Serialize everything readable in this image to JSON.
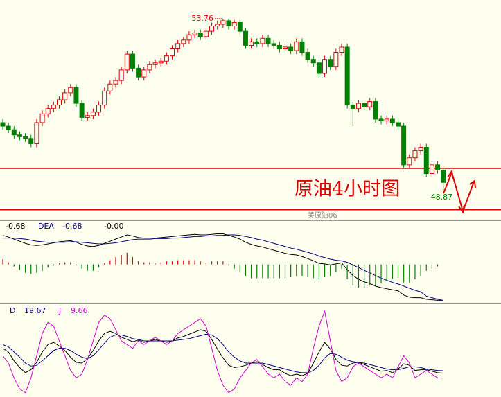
{
  "chart_data": [
    {
      "type": "candlestick",
      "up_color": "#dd0000",
      "down_color": "#008000",
      "ylim": [
        48.02,
        54.29
      ],
      "annotation": "原油4小时图",
      "symbol": "美原油06",
      "hlines": {
        "values": [
          49.5,
          48.32
        ],
        "color": "#e00000"
      },
      "open": [
        50.8,
        50.7,
        50.6,
        50.45,
        50.4,
        50.35,
        50.2,
        50.8,
        51.05,
        51.2,
        51.3,
        51.45,
        51.65,
        51.8,
        51.35,
        50.95,
        51.0,
        51.1,
        51.3,
        51.7,
        51.9,
        52.0,
        52.3,
        52.75,
        52.35,
        52.1,
        52.3,
        52.45,
        52.5,
        52.55,
        52.7,
        52.9,
        53.05,
        53.15,
        53.3,
        53.35,
        53.25,
        53.4,
        53.55,
        53.6,
        53.7,
        53.55,
        53.65,
        53.4,
        53.0,
        53.1,
        53.05,
        53.2,
        53.05,
        53.0,
        52.9,
        52.95,
        52.85,
        53.1,
        52.8,
        52.6,
        52.5,
        52.2,
        52.6,
        52.4,
        52.8,
        52.95,
        51.3,
        51.2,
        51.35,
        51.25,
        51.4,
        50.9,
        50.85,
        50.9,
        50.8,
        50.7,
        49.6,
        49.8,
        50.0,
        50.1,
        49.35,
        49.6,
        49.45
      ],
      "high": [
        50.9,
        50.8,
        50.7,
        50.55,
        50.5,
        50.45,
        50.9,
        51.15,
        51.3,
        51.4,
        51.55,
        51.75,
        51.9,
        51.9,
        51.45,
        51.1,
        51.2,
        51.4,
        51.8,
        52.0,
        52.1,
        52.4,
        52.85,
        52.85,
        52.45,
        52.4,
        52.55,
        52.6,
        52.65,
        52.8,
        53.0,
        53.15,
        53.25,
        53.4,
        53.45,
        53.45,
        53.5,
        53.65,
        53.7,
        53.76,
        53.75,
        53.72,
        53.72,
        53.5,
        53.2,
        53.2,
        53.3,
        53.3,
        53.15,
        53.1,
        53.05,
        53.05,
        53.2,
        53.2,
        52.9,
        52.7,
        52.6,
        52.7,
        52.7,
        52.9,
        53.05,
        53.05,
        51.4,
        51.45,
        51.45,
        51.5,
        51.5,
        51.0,
        51.0,
        51.0,
        50.9,
        50.8,
        49.9,
        50.1,
        50.2,
        50.2,
        49.7,
        49.7,
        49.55
      ],
      "low": [
        50.6,
        50.5,
        50.35,
        50.3,
        50.25,
        50.1,
        50.1,
        50.7,
        50.95,
        51.1,
        51.2,
        51.35,
        51.55,
        51.25,
        50.85,
        50.85,
        50.9,
        51.0,
        51.2,
        51.6,
        51.8,
        51.9,
        52.2,
        52.25,
        52.0,
        52.0,
        52.2,
        52.35,
        52.4,
        52.45,
        52.6,
        52.8,
        52.95,
        53.05,
        53.2,
        53.15,
        53.15,
        53.3,
        53.45,
        53.5,
        53.45,
        53.45,
        53.3,
        52.9,
        52.9,
        52.95,
        52.95,
        52.95,
        52.9,
        52.8,
        52.8,
        52.75,
        52.75,
        52.7,
        52.5,
        52.4,
        52.1,
        52.1,
        52.3,
        52.3,
        52.7,
        51.2,
        50.7,
        51.1,
        51.15,
        51.15,
        50.8,
        50.75,
        50.75,
        50.7,
        50.6,
        49.5,
        49.5,
        49.7,
        49.9,
        49.25,
        49.25,
        49.35,
        48.87
      ],
      "close": [
        50.7,
        50.6,
        50.45,
        50.4,
        50.35,
        50.2,
        50.8,
        51.05,
        51.2,
        51.3,
        51.45,
        51.65,
        51.8,
        51.35,
        50.95,
        51.0,
        51.1,
        51.3,
        51.7,
        51.9,
        52.0,
        52.3,
        52.75,
        52.35,
        52.1,
        52.3,
        52.45,
        52.5,
        52.55,
        52.7,
        52.9,
        53.05,
        53.15,
        53.3,
        53.35,
        53.25,
        53.4,
        53.55,
        53.6,
        53.7,
        53.55,
        53.65,
        53.4,
        53.0,
        53.1,
        53.05,
        53.2,
        53.05,
        53.0,
        52.9,
        52.95,
        52.85,
        53.1,
        52.8,
        52.6,
        52.5,
        52.2,
        52.6,
        52.4,
        52.8,
        52.95,
        51.3,
        51.2,
        51.35,
        51.25,
        51.4,
        50.9,
        50.85,
        50.9,
        50.8,
        50.7,
        49.6,
        49.8,
        50.0,
        50.1,
        49.35,
        49.6,
        49.45,
        49.1
      ]
    },
    {
      "type": "macd",
      "ylim": [
        -0.74,
        0.81
      ],
      "series": [
        {
          "color": "#000000",
          "values": [
            0.55,
            0.52,
            0.48,
            0.44,
            0.4,
            0.37,
            0.36,
            0.37,
            0.39,
            0.41,
            0.43,
            0.44,
            0.45,
            0.42,
            0.38,
            0.35,
            0.34,
            0.36,
            0.4,
            0.44,
            0.48,
            0.52,
            0.56,
            0.54,
            0.51,
            0.5,
            0.5,
            0.5,
            0.51,
            0.52,
            0.53,
            0.54,
            0.55,
            0.56,
            0.57,
            0.56,
            0.56,
            0.57,
            0.58,
            0.58,
            0.55,
            0.52,
            0.48,
            0.42,
            0.38,
            0.35,
            0.33,
            0.3,
            0.27,
            0.24,
            0.21,
            0.19,
            0.18,
            0.15,
            0.11,
            0.07,
            0.02,
            0.01,
            -0.01,
            0.01,
            0.03,
            -0.1,
            -0.21,
            -0.28,
            -0.33,
            -0.36,
            -0.41,
            -0.44,
            -0.46,
            -0.48,
            -0.5,
            -0.58,
            -0.62,
            -0.63,
            -0.63,
            -0.66,
            -0.67,
            -0.68,
            -0.68
          ]
        },
        {
          "name": "DEA",
          "color": "#000080",
          "values": [
            0.5,
            0.5,
            0.5,
            0.49,
            0.48,
            0.46,
            0.44,
            0.43,
            0.42,
            0.42,
            0.42,
            0.42,
            0.43,
            0.43,
            0.42,
            0.41,
            0.4,
            0.39,
            0.39,
            0.4,
            0.41,
            0.43,
            0.45,
            0.47,
            0.48,
            0.48,
            0.48,
            0.49,
            0.49,
            0.49,
            0.5,
            0.5,
            0.51,
            0.52,
            0.53,
            0.53,
            0.54,
            0.54,
            0.55,
            0.55,
            0.56,
            0.56,
            0.55,
            0.53,
            0.51,
            0.48,
            0.46,
            0.43,
            0.4,
            0.37,
            0.34,
            0.31,
            0.29,
            0.26,
            0.23,
            0.2,
            0.16,
            0.13,
            0.1,
            0.08,
            0.07,
            0.04,
            -0.01,
            -0.06,
            -0.11,
            -0.16,
            -0.21,
            -0.26,
            -0.3,
            -0.34,
            -0.37,
            -0.41,
            -0.45,
            -0.49,
            -0.52,
            -0.6,
            -0.63,
            -0.66,
            -0.68
          ]
        },
        {
          "type": "bar",
          "up_color": "#dd0000",
          "down_color": "#008000",
          "values": [
            0.1,
            0.04,
            -0.04,
            -0.1,
            -0.16,
            -0.18,
            -0.16,
            -0.12,
            -0.06,
            -0.02,
            0.02,
            0.04,
            0.04,
            -0.02,
            -0.08,
            -0.12,
            -0.12,
            -0.06,
            0.02,
            0.08,
            0.14,
            0.18,
            0.22,
            0.14,
            0.06,
            0.04,
            0.04,
            0.02,
            0.04,
            0.06,
            0.06,
            0.08,
            0.08,
            0.08,
            0.08,
            0.06,
            0.04,
            0.06,
            0.06,
            0.06,
            -0.02,
            -0.08,
            -0.14,
            -0.22,
            -0.26,
            -0.26,
            -0.26,
            -0.26,
            -0.26,
            -0.26,
            -0.26,
            -0.24,
            -0.22,
            -0.22,
            -0.24,
            -0.26,
            -0.28,
            -0.24,
            -0.22,
            -0.14,
            -0.08,
            -0.28,
            -0.4,
            -0.44,
            -0.44,
            -0.4,
            -0.4,
            -0.36,
            -0.32,
            -0.28,
            -0.26,
            -0.34,
            -0.34,
            -0.28,
            -0.22,
            -0.12,
            -0.08,
            -0.04,
            0.0
          ],
          "value_labels": [
            null,
            null,
            null,
            null,
            null,
            null,
            null,
            null,
            null,
            null,
            null,
            null,
            null,
            null,
            null,
            null,
            null,
            null,
            null,
            null,
            null,
            null,
            null,
            null,
            null,
            null,
            null,
            null,
            null,
            null,
            null,
            null,
            null,
            null,
            null,
            null,
            null,
            null,
            null,
            null,
            null,
            null,
            null,
            null,
            null,
            null,
            null,
            null,
            null,
            null,
            null,
            null,
            null,
            null,
            null,
            null,
            null,
            null,
            null,
            null,
            null,
            null,
            null,
            null,
            null,
            null,
            null,
            null,
            null,
            null,
            null,
            null,
            null,
            null,
            null,
            null,
            null,
            null,
            "-0.00"
          ]
        }
      ]
    },
    {
      "type": "kdj",
      "ylim": [
        -15,
        105
      ],
      "series": [
        {
          "color": "#000000",
          "values": [
            50,
            45,
            33,
            24,
            17,
            21,
            31,
            45,
            55,
            58,
            53,
            47,
            38,
            31,
            30,
            36,
            47,
            60,
            70,
            73,
            70,
            65,
            62,
            59,
            61,
            58,
            60,
            62,
            60,
            58,
            60,
            64,
            66,
            69,
            72,
            75,
            73,
            62,
            49,
            37,
            27,
            24,
            25,
            27,
            30,
            32,
            28,
            24,
            21,
            21,
            16,
            13,
            15,
            13,
            16,
            30,
            45,
            58,
            49,
            35,
            27,
            26,
            30,
            31,
            28,
            25,
            22,
            19,
            20,
            17,
            22,
            29,
            27,
            20,
            21,
            21,
            19,
            17,
            16.3
          ]
        },
        {
          "name": "D",
          "color": "#000080",
          "values": [
            55,
            52,
            45,
            38,
            30,
            26,
            27,
            33,
            40,
            47,
            50,
            50,
            47,
            42,
            38,
            36,
            40,
            48,
            57,
            65,
            68,
            68,
            66,
            63,
            62,
            60,
            60,
            60,
            60,
            60,
            60,
            61,
            62,
            63,
            65,
            67,
            69,
            68,
            63,
            55,
            45,
            38,
            33,
            30,
            30,
            30,
            30,
            28,
            26,
            24,
            22,
            20,
            18,
            17,
            17,
            20,
            27,
            37,
            43,
            42,
            38,
            34,
            32,
            31,
            30,
            28,
            26,
            24,
            22,
            21,
            21,
            23,
            25,
            25,
            24,
            22,
            21,
            20,
            19.67
          ]
        },
        {
          "name": "J",
          "color": "#cc00cc",
          "values": [
            40,
            30,
            10,
            -5,
            -10,
            10,
            40,
            70,
            85,
            80,
            60,
            40,
            20,
            10,
            15,
            35,
            60,
            85,
            95,
            90,
            75,
            60,
            55,
            50,
            60,
            55,
            60,
            65,
            60,
            55,
            60,
            70,
            75,
            80,
            85,
            90,
            80,
            50,
            20,
            0,
            -10,
            -5,
            10,
            20,
            30,
            35,
            25,
            15,
            10,
            15,
            5,
            0,
            10,
            5,
            15,
            50,
            80,
            100,
            60,
            20,
            5,
            10,
            25,
            30,
            25,
            20,
            15,
            10,
            15,
            10,
            25,
            40,
            30,
            10,
            15,
            20,
            15,
            10,
            9.66
          ]
        }
      ]
    }
  ]
}
